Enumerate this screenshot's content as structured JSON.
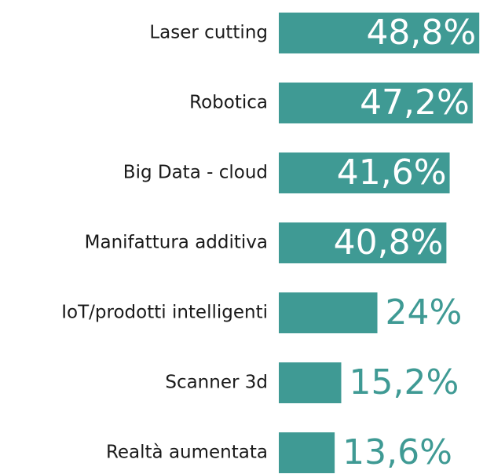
{
  "chart_data": {
    "type": "bar",
    "orientation": "horizontal",
    "categories": [
      "Laser cutting",
      "Robotica",
      "Big Data - cloud",
      "Manifattura additiva",
      "IoT/prodotti intelligenti",
      "Scanner 3d",
      "Realtà aumentata"
    ],
    "values": [
      48.8,
      47.2,
      41.6,
      40.8,
      24,
      15.2,
      13.6
    ],
    "value_labels": [
      "48,8%",
      "47,2%",
      "41,6%",
      "40,8%",
      "24%",
      "15,2%",
      "13,6%"
    ],
    "color": "#3f9a94"
  }
}
